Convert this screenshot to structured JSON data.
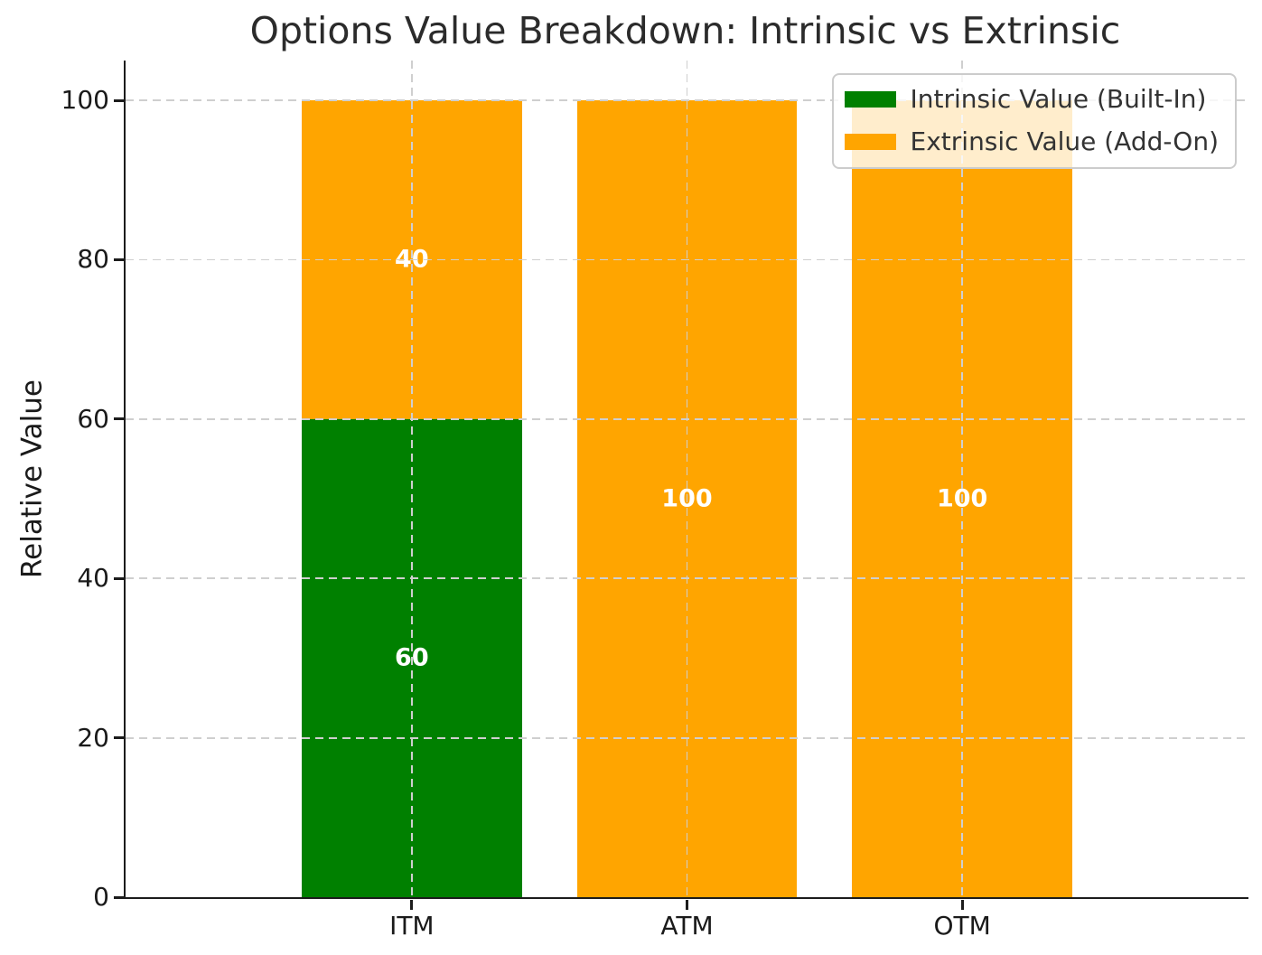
{
  "chart_data": {
    "type": "bar",
    "stacked": true,
    "title": "Options Value Breakdown: Intrinsic vs Extrinsic",
    "xlabel": "",
    "ylabel": "Relative Value",
    "categories": [
      "ITM",
      "ATM",
      "OTM"
    ],
    "series": [
      {
        "name": "Intrinsic Value (Built-In)",
        "color": "#008000",
        "values": [
          60,
          0,
          0
        ]
      },
      {
        "name": "Extrinsic Value (Add-On)",
        "color": "#FFA500",
        "values": [
          40,
          100,
          100
        ]
      }
    ],
    "bar_value_labels": [
      {
        "category": "ITM",
        "labels": [
          "60",
          "40"
        ]
      },
      {
        "category": "ATM",
        "labels": [
          "",
          "100"
        ]
      },
      {
        "category": "OTM",
        "labels": [
          "",
          "100"
        ]
      }
    ],
    "yticks": [
      0,
      20,
      40,
      60,
      80,
      100
    ],
    "ylim": [
      0,
      105
    ],
    "xlim_pad": 0.54,
    "bar_width": 0.8,
    "grid": "dashed",
    "grid_on_top": true,
    "legend_position": "upper right",
    "value_label_color": "#ffffff",
    "grid_color": "#cfcfcf",
    "spine_color": "#1c1c1c"
  }
}
